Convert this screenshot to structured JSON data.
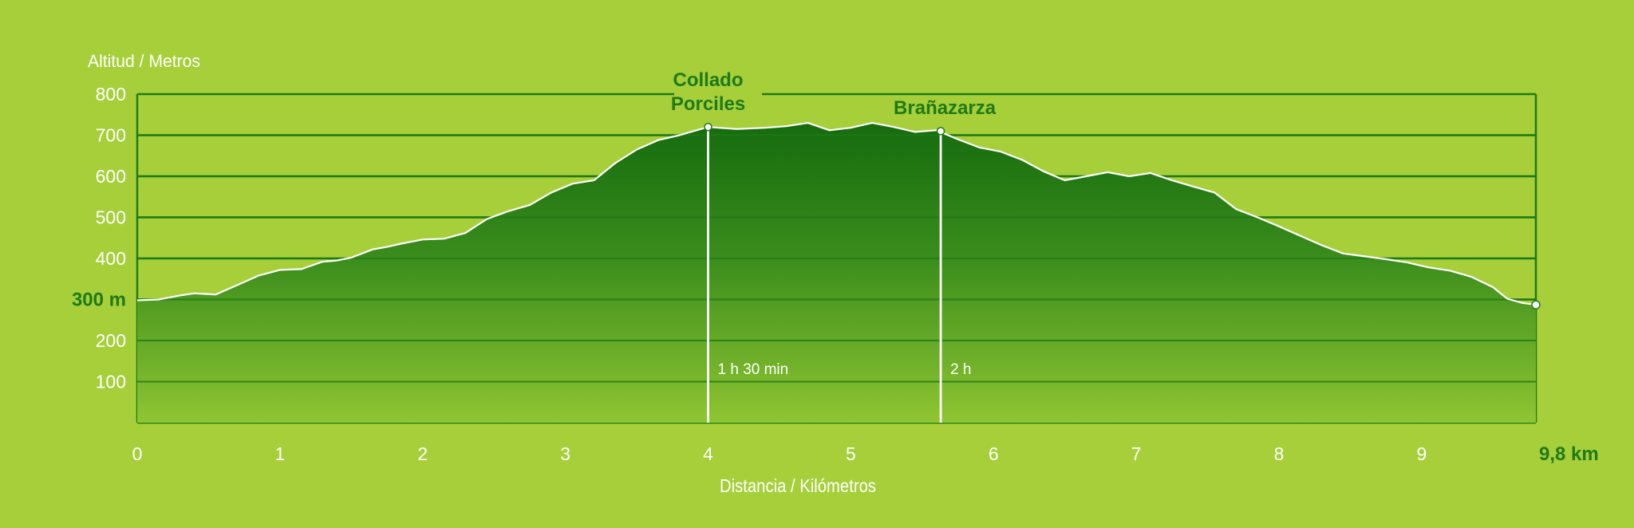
{
  "chart_data": {
    "type": "area",
    "ylabel": "Altitud / Metros",
    "xlabel": "Distancia / Kilómetros",
    "xlim": [
      0,
      9.8
    ],
    "ylim": [
      0,
      800
    ],
    "x_ticks": [
      "0",
      "1",
      "2",
      "3",
      "4",
      "5",
      "6",
      "7",
      "8",
      "9",
      "9,8 km"
    ],
    "y_ticks": [
      "100",
      "200",
      "300 m",
      "400",
      "500",
      "600",
      "700",
      "800"
    ],
    "grid": true,
    "colors": {
      "background": "#a6cf3a",
      "grid": "#1f7a16",
      "fill_top": "#166b0e",
      "fill_bottom": "#8fc532",
      "profile_line": "#ffffff",
      "highlight_text": "#1f7a16"
    },
    "series": [
      {
        "x": [
          0,
          0.15,
          0.3,
          0.4,
          0.55,
          0.7,
          0.85,
          1.0,
          1.15,
          1.3,
          1.4,
          1.5,
          1.65,
          1.75,
          1.85,
          2.0,
          2.15,
          2.3,
          2.45,
          2.6,
          2.75,
          2.9,
          3.05,
          3.2,
          3.35,
          3.5,
          3.65,
          3.8,
          4.0,
          4.2,
          4.4,
          4.55,
          4.7,
          4.85,
          5.0,
          5.15,
          5.3,
          5.45,
          5.6,
          5.75,
          5.9,
          6.05,
          6.2,
          6.35,
          6.5,
          6.65,
          6.8,
          6.95,
          7.1,
          7.25,
          7.4,
          7.55,
          7.7,
          7.85,
          8.0,
          8.15,
          8.3,
          8.45,
          8.6,
          8.75,
          8.9,
          9.05,
          9.2,
          9.35,
          9.5,
          9.6,
          9.7,
          9.8
        ],
        "y": [
          298,
          300,
          310,
          315,
          312,
          335,
          358,
          372,
          374,
          392,
          395,
          402,
          422,
          428,
          436,
          446,
          448,
          462,
          496,
          515,
          530,
          560,
          582,
          590,
          632,
          665,
          688,
          700,
          720,
          715,
          718,
          722,
          730,
          712,
          718,
          730,
          720,
          708,
          712,
          690,
          670,
          660,
          640,
          612,
          590,
          600,
          610,
          600,
          608,
          590,
          575,
          560,
          520,
          500,
          478,
          455,
          432,
          412,
          405,
          398,
          390,
          378,
          370,
          355,
          330,
          302,
          292,
          287
        ]
      }
    ],
    "markers": [
      {
        "label": "Collado Porciles",
        "label_lines": [
          "Collado",
          "Porciles"
        ],
        "x": 4.0,
        "y": 720,
        "time": "1 h 30 min"
      },
      {
        "label": "Brañazarza",
        "label_lines": [
          "Brañazarza"
        ],
        "x": 5.63,
        "y": 710,
        "time": "2 h"
      }
    ],
    "end_point": {
      "x": 9.8,
      "y": 287
    }
  }
}
